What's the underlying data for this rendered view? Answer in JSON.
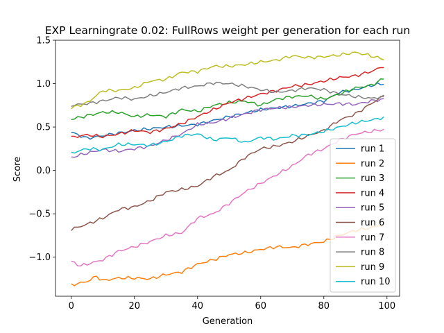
{
  "chart_data": {
    "type": "line",
    "title": "EXP Learningrate 0.02: FullRows weight per generation for each run",
    "xlabel": "Generation",
    "ylabel": "Score",
    "xlim": [
      -5,
      104
    ],
    "ylim": [
      -1.45,
      1.5
    ],
    "xticks": [
      0,
      20,
      40,
      60,
      80,
      100
    ],
    "yticks": [
      -1.0,
      -0.5,
      0.0,
      0.5,
      1.0,
      1.5
    ],
    "ytick_labels": [
      "−1.0",
      "−0.5",
      "0.0",
      "0.5",
      "1.0",
      "1.5"
    ],
    "grid": false,
    "legend": "lower-right",
    "x": {
      "start": 0,
      "end": 99,
      "step": 1
    },
    "series": [
      {
        "name": "run 1",
        "color": "#1f77b4",
        "anchors": [
          [
            0,
            0.44
          ],
          [
            5,
            0.37
          ],
          [
            10,
            0.4
          ],
          [
            20,
            0.46
          ],
          [
            30,
            0.5
          ],
          [
            40,
            0.53
          ],
          [
            50,
            0.62
          ],
          [
            60,
            0.7
          ],
          [
            70,
            0.74
          ],
          [
            80,
            0.8
          ],
          [
            85,
            0.9
          ],
          [
            90,
            0.93
          ],
          [
            95,
            0.98
          ],
          [
            99,
            1.0
          ]
        ]
      },
      {
        "name": "run 2",
        "color": "#ff7f0e",
        "anchors": [
          [
            0,
            -1.32
          ],
          [
            5,
            -1.28
          ],
          [
            8,
            -1.22
          ],
          [
            10,
            -1.27
          ],
          [
            15,
            -1.24
          ],
          [
            20,
            -1.24
          ],
          [
            25,
            -1.25
          ],
          [
            30,
            -1.2
          ],
          [
            35,
            -1.17
          ],
          [
            40,
            -1.08
          ],
          [
            45,
            -1.03
          ],
          [
            50,
            -0.97
          ],
          [
            55,
            -0.95
          ],
          [
            60,
            -0.91
          ],
          [
            65,
            -0.88
          ],
          [
            70,
            -0.89
          ],
          [
            75,
            -0.85
          ],
          [
            80,
            -0.82
          ],
          [
            85,
            -0.75
          ],
          [
            90,
            -0.69
          ],
          [
            95,
            -0.66
          ],
          [
            99,
            -0.62
          ]
        ]
      },
      {
        "name": "run 3",
        "color": "#2ca02c",
        "anchors": [
          [
            0,
            0.59
          ],
          [
            5,
            0.63
          ],
          [
            10,
            0.67
          ],
          [
            15,
            0.67
          ],
          [
            20,
            0.62
          ],
          [
            25,
            0.64
          ],
          [
            30,
            0.62
          ],
          [
            35,
            0.7
          ],
          [
            40,
            0.68
          ],
          [
            45,
            0.75
          ],
          [
            50,
            0.78
          ],
          [
            55,
            0.8
          ],
          [
            60,
            0.75
          ],
          [
            65,
            0.82
          ],
          [
            70,
            0.85
          ],
          [
            75,
            0.86
          ],
          [
            80,
            0.82
          ],
          [
            85,
            0.88
          ],
          [
            90,
            0.95
          ],
          [
            95,
            0.98
          ],
          [
            99,
            1.06
          ]
        ]
      },
      {
        "name": "run 4",
        "color": "#d62728",
        "anchors": [
          [
            0,
            0.38
          ],
          [
            5,
            0.41
          ],
          [
            10,
            0.39
          ],
          [
            15,
            0.42
          ],
          [
            20,
            0.46
          ],
          [
            25,
            0.44
          ],
          [
            30,
            0.48
          ],
          [
            35,
            0.54
          ],
          [
            40,
            0.62
          ],
          [
            45,
            0.7
          ],
          [
            50,
            0.78
          ],
          [
            55,
            0.83
          ],
          [
            60,
            0.88
          ],
          [
            65,
            0.92
          ],
          [
            70,
            0.97
          ],
          [
            75,
            0.99
          ],
          [
            80,
            1.03
          ],
          [
            85,
            1.07
          ],
          [
            90,
            1.09
          ],
          [
            95,
            1.14
          ],
          [
            99,
            1.2
          ]
        ]
      },
      {
        "name": "run 5",
        "color": "#9467bd",
        "anchors": [
          [
            0,
            0.15
          ],
          [
            5,
            0.2
          ],
          [
            10,
            0.24
          ],
          [
            15,
            0.22
          ],
          [
            20,
            0.25
          ],
          [
            25,
            0.28
          ],
          [
            30,
            0.35
          ],
          [
            35,
            0.42
          ],
          [
            40,
            0.53
          ],
          [
            45,
            0.55
          ],
          [
            50,
            0.6
          ],
          [
            55,
            0.65
          ],
          [
            60,
            0.7
          ],
          [
            65,
            0.72
          ],
          [
            70,
            0.73
          ],
          [
            75,
            0.75
          ],
          [
            80,
            0.76
          ],
          [
            85,
            0.77
          ],
          [
            90,
            0.76
          ],
          [
            95,
            0.8
          ],
          [
            99,
            0.82
          ]
        ]
      },
      {
        "name": "run 6",
        "color": "#8c564b",
        "anchors": [
          [
            0,
            -0.68
          ],
          [
            5,
            -0.62
          ],
          [
            10,
            -0.55
          ],
          [
            15,
            -0.45
          ],
          [
            20,
            -0.42
          ],
          [
            25,
            -0.35
          ],
          [
            30,
            -0.25
          ],
          [
            35,
            -0.22
          ],
          [
            40,
            -0.18
          ],
          [
            45,
            -0.07
          ],
          [
            50,
            0.0
          ],
          [
            55,
            0.15
          ],
          [
            60,
            0.25
          ],
          [
            65,
            0.28
          ],
          [
            70,
            0.33
          ],
          [
            75,
            0.4
          ],
          [
            80,
            0.46
          ],
          [
            85,
            0.58
          ],
          [
            90,
            0.65
          ],
          [
            95,
            0.77
          ],
          [
            99,
            0.86
          ]
        ]
      },
      {
        "name": "run 7",
        "color": "#e377c2",
        "anchors": [
          [
            0,
            -1.05
          ],
          [
            3,
            -1.1
          ],
          [
            10,
            -1.03
          ],
          [
            15,
            -0.93
          ],
          [
            20,
            -0.88
          ],
          [
            25,
            -0.82
          ],
          [
            30,
            -0.75
          ],
          [
            35,
            -0.72
          ],
          [
            40,
            -0.55
          ],
          [
            45,
            -0.5
          ],
          [
            50,
            -0.38
          ],
          [
            55,
            -0.25
          ],
          [
            60,
            -0.15
          ],
          [
            65,
            -0.05
          ],
          [
            70,
            0.05
          ],
          [
            75,
            0.18
          ],
          [
            80,
            0.25
          ],
          [
            85,
            0.35
          ],
          [
            90,
            0.42
          ],
          [
            95,
            0.45
          ],
          [
            99,
            0.47
          ]
        ]
      },
      {
        "name": "run 8",
        "color": "#7f7f7f",
        "anchors": [
          [
            0,
            0.75
          ],
          [
            5,
            0.77
          ],
          [
            10,
            0.8
          ],
          [
            15,
            0.84
          ],
          [
            20,
            0.82
          ],
          [
            25,
            0.86
          ],
          [
            30,
            0.9
          ],
          [
            35,
            0.95
          ],
          [
            40,
            0.97
          ],
          [
            45,
            1.01
          ],
          [
            50,
            1.0
          ],
          [
            55,
            0.97
          ],
          [
            60,
            0.93
          ],
          [
            65,
            0.9
          ],
          [
            70,
            0.92
          ],
          [
            75,
            0.95
          ],
          [
            80,
            0.93
          ],
          [
            85,
            0.88
          ],
          [
            90,
            0.85
          ],
          [
            95,
            0.83
          ],
          [
            99,
            0.85
          ]
        ]
      },
      {
        "name": "run 9",
        "color": "#bcbd22",
        "anchors": [
          [
            0,
            0.72
          ],
          [
            5,
            0.78
          ],
          [
            10,
            0.92
          ],
          [
            15,
            0.92
          ],
          [
            20,
            0.95
          ],
          [
            25,
            1.03
          ],
          [
            30,
            1.05
          ],
          [
            35,
            1.13
          ],
          [
            40,
            1.14
          ],
          [
            45,
            1.2
          ],
          [
            50,
            1.2
          ],
          [
            55,
            1.22
          ],
          [
            60,
            1.25
          ],
          [
            65,
            1.27
          ],
          [
            70,
            1.32
          ],
          [
            75,
            1.3
          ],
          [
            80,
            1.31
          ],
          [
            85,
            1.33
          ],
          [
            90,
            1.36
          ],
          [
            95,
            1.32
          ],
          [
            99,
            1.28
          ]
        ]
      },
      {
        "name": "run 10",
        "color": "#17becf",
        "anchors": [
          [
            0,
            0.2
          ],
          [
            5,
            0.25
          ],
          [
            10,
            0.24
          ],
          [
            15,
            0.3
          ],
          [
            20,
            0.3
          ],
          [
            25,
            0.29
          ],
          [
            30,
            0.33
          ],
          [
            35,
            0.4
          ],
          [
            40,
            0.42
          ],
          [
            45,
            0.35
          ],
          [
            50,
            0.38
          ],
          [
            55,
            0.32
          ],
          [
            60,
            0.38
          ],
          [
            65,
            0.36
          ],
          [
            70,
            0.4
          ],
          [
            75,
            0.41
          ],
          [
            80,
            0.45
          ],
          [
            85,
            0.5
          ],
          [
            90,
            0.55
          ],
          [
            95,
            0.58
          ],
          [
            99,
            0.61
          ]
        ]
      }
    ]
  }
}
